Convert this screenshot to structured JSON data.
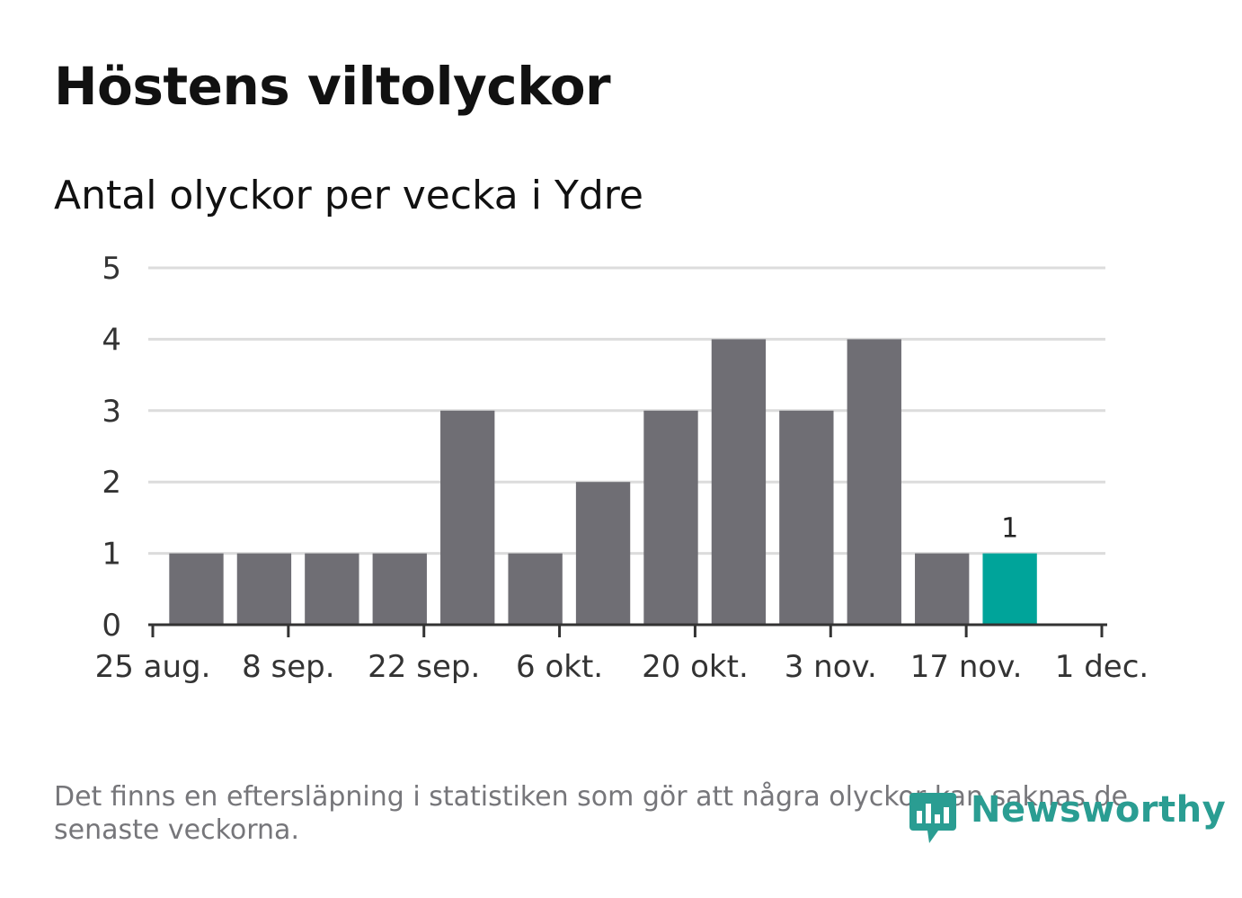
{
  "header": {
    "title": "Höstens viltolyckor",
    "subtitle": "Antal olyckor per vecka i Ydre"
  },
  "footnote": "Det finns en eftersläpning i statistiken som gör att några olyckor kan saknas de senaste veckorna.",
  "brand": {
    "name": "Newsworthy",
    "icon": "newsworthy-logo-icon",
    "color": "#2a9d92"
  },
  "chart_data": {
    "type": "bar",
    "title": "Höstens viltolyckor",
    "subtitle": "Antal olyckor per vecka i Ydre",
    "xlabel": "",
    "ylabel": "",
    "x_axis": {
      "type": "date",
      "range": [
        "2024-08-25",
        "2024-12-01"
      ],
      "ticks": [
        {
          "date": "2024-08-25",
          "label": "25 aug."
        },
        {
          "date": "2024-09-08",
          "label": "8 sep."
        },
        {
          "date": "2024-09-22",
          "label": "22 sep."
        },
        {
          "date": "2024-10-06",
          "label": "6 okt."
        },
        {
          "date": "2024-10-20",
          "label": "20 okt."
        },
        {
          "date": "2024-11-03",
          "label": "3 nov."
        },
        {
          "date": "2024-11-17",
          "label": "17 nov."
        },
        {
          "date": "2024-12-01",
          "label": "1 dec."
        }
      ]
    },
    "y_axis": {
      "range": [
        0,
        5
      ],
      "ticks": [
        0,
        1,
        2,
        3,
        4,
        5
      ],
      "grid": true
    },
    "bars": [
      {
        "week_start": "2024-08-26",
        "value": 1
      },
      {
        "week_start": "2024-09-02",
        "value": 1
      },
      {
        "week_start": "2024-09-09",
        "value": 1
      },
      {
        "week_start": "2024-09-16",
        "value": 1
      },
      {
        "week_start": "2024-09-23",
        "value": 3
      },
      {
        "week_start": "2024-09-30",
        "value": 1
      },
      {
        "week_start": "2024-10-07",
        "value": 2
      },
      {
        "week_start": "2024-10-14",
        "value": 3
      },
      {
        "week_start": "2024-10-21",
        "value": 4
      },
      {
        "week_start": "2024-10-28",
        "value": 3
      },
      {
        "week_start": "2024-11-04",
        "value": 4
      },
      {
        "week_start": "2024-11-11",
        "value": 1
      },
      {
        "week_start": "2024-11-18",
        "value": 1,
        "highlight": true,
        "label": "1"
      }
    ],
    "colors": {
      "bar": "#6f6e74",
      "highlight": "#00a49a",
      "grid": "#dcdcdc",
      "axis": "#333333"
    },
    "legend": "none"
  }
}
